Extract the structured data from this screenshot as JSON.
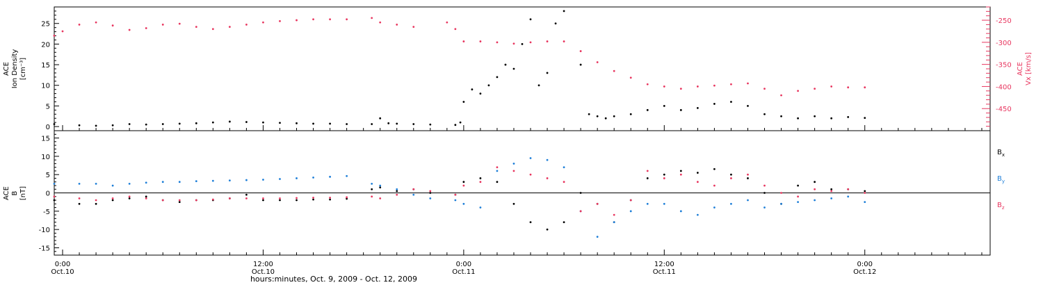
{
  "figure": {
    "xlabel": "hours:minutes, Oct. 9, 2009 - Oct. 12, 2009",
    "colors": {
      "black": "#000000",
      "pink": "#e8365f",
      "blue": "#1e7fd8"
    },
    "x_ticks": [
      {
        "t": 0,
        "time": "0:00",
        "date": "Oct.10"
      },
      {
        "t": 12,
        "time": "12:00",
        "date": "Oct.10"
      },
      {
        "t": 24,
        "time": "0:00",
        "date": "Oct.11"
      },
      {
        "t": 36,
        "time": "12:00",
        "date": "Oct.11"
      },
      {
        "t": 48,
        "time": "0:00",
        "date": "Oct.12"
      }
    ]
  },
  "chart_data": [
    {
      "type": "scatter",
      "panel": "top",
      "xlim": [
        -0.5,
        55.5
      ],
      "ylim": [
        -1,
        29
      ],
      "y2lim": [
        -500,
        -220
      ],
      "ylabel_left": [
        "ACE",
        "Ion Density",
        "[cm⁻³]"
      ],
      "ylabel_right": [
        "ACE",
        "Vx [km/s]"
      ],
      "left_ticks": [
        0,
        5,
        10,
        15,
        20,
        25
      ],
      "right_ticks": [
        -250,
        -300,
        -350,
        -400,
        -450
      ],
      "series": [
        {
          "color": "black",
          "axis": "left",
          "points": [
            [
              -0.5,
              0.6
            ],
            [
              1,
              0.3
            ],
            [
              2,
              0.2
            ],
            [
              3,
              0.3
            ],
            [
              4,
              0.6
            ],
            [
              5,
              0.5
            ],
            [
              6,
              0.6
            ],
            [
              7,
              0.7
            ],
            [
              8,
              0.8
            ],
            [
              9,
              1.0
            ],
            [
              10,
              1.2
            ],
            [
              11,
              1.1
            ],
            [
              12,
              1.0
            ],
            [
              13,
              0.9
            ],
            [
              14,
              0.8
            ],
            [
              15,
              0.7
            ],
            [
              16,
              0.7
            ],
            [
              17,
              0.6
            ],
            [
              18.5,
              0.6
            ],
            [
              19,
              2.0
            ],
            [
              19.5,
              0.8
            ],
            [
              20,
              0.7
            ],
            [
              21,
              0.6
            ],
            [
              22,
              0.5
            ],
            [
              23.5,
              0.4
            ],
            [
              23.8,
              1.0
            ],
            [
              24,
              6.0
            ],
            [
              24.5,
              9.0
            ],
            [
              25,
              8.0
            ],
            [
              25.5,
              10.0
            ],
            [
              26,
              12.0
            ],
            [
              26.5,
              15.0
            ],
            [
              27,
              14.0
            ],
            [
              27.5,
              20.0
            ],
            [
              28,
              26.0
            ],
            [
              28.5,
              10.0
            ],
            [
              29,
              13.0
            ],
            [
              29.5,
              25.0
            ],
            [
              30,
              28.0
            ],
            [
              31,
              15.0
            ],
            [
              31.5,
              3.0
            ],
            [
              32,
              2.5
            ],
            [
              32.5,
              2.0
            ],
            [
              33,
              2.5
            ],
            [
              34,
              3.0
            ],
            [
              35,
              4.0
            ],
            [
              36,
              5.0
            ],
            [
              37,
              4.0
            ],
            [
              38,
              4.5
            ],
            [
              39,
              5.5
            ],
            [
              40,
              6.0
            ],
            [
              41,
              5.0
            ],
            [
              42,
              3.0
            ],
            [
              43,
              2.5
            ],
            [
              44,
              2.0
            ],
            [
              45,
              2.5
            ],
            [
              46,
              2.0
            ],
            [
              47,
              2.3
            ],
            [
              48,
              2.1
            ]
          ]
        },
        {
          "color": "pink",
          "axis": "right",
          "points": [
            [
              -0.5,
              -285
            ],
            [
              0,
              -275
            ],
            [
              1,
              -260
            ],
            [
              2,
              -255
            ],
            [
              3,
              -262
            ],
            [
              4,
              -272
            ],
            [
              5,
              -268
            ],
            [
              6,
              -260
            ],
            [
              7,
              -258
            ],
            [
              8,
              -265
            ],
            [
              9,
              -270
            ],
            [
              10,
              -265
            ],
            [
              11,
              -260
            ],
            [
              12,
              -255
            ],
            [
              13,
              -252
            ],
            [
              14,
              -250
            ],
            [
              15,
              -248
            ],
            [
              16,
              -248
            ],
            [
              17,
              -248
            ],
            [
              18.5,
              -245
            ],
            [
              19,
              -255
            ],
            [
              20,
              -260
            ],
            [
              21,
              -265
            ],
            [
              23,
              -255
            ],
            [
              23.5,
              -270
            ],
            [
              24,
              -298
            ],
            [
              25,
              -298
            ],
            [
              26,
              -300
            ],
            [
              27,
              -303
            ],
            [
              28,
              -300
            ],
            [
              29,
              -298
            ],
            [
              30,
              -298
            ],
            [
              31,
              -320
            ],
            [
              32,
              -345
            ],
            [
              33,
              -365
            ],
            [
              34,
              -380
            ],
            [
              35,
              -395
            ],
            [
              36,
              -400
            ],
            [
              37,
              -405
            ],
            [
              38,
              -400
            ],
            [
              39,
              -398
            ],
            [
              40,
              -395
            ],
            [
              41,
              -393
            ],
            [
              42,
              -405
            ],
            [
              43,
              -420
            ],
            [
              44,
              -410
            ],
            [
              45,
              -405
            ],
            [
              46,
              -400
            ],
            [
              47,
              -402
            ],
            [
              48,
              -402
            ]
          ]
        }
      ]
    },
    {
      "type": "scatter",
      "panel": "bottom",
      "xlim": [
        -0.5,
        55.5
      ],
      "ylim": [
        -17,
        17
      ],
      "ylabel_left": [
        "ACE",
        "B",
        "[nT]"
      ],
      "left_ticks": [
        15,
        10,
        5,
        0,
        -5,
        -10,
        -15
      ],
      "legend": [
        "Bx",
        "By",
        "Bz"
      ],
      "series": [
        {
          "name": "Bx",
          "color": "black",
          "points": [
            [
              -0.5,
              -2.0
            ],
            [
              1,
              -3.0
            ],
            [
              2,
              -3.0
            ],
            [
              3,
              -2.0
            ],
            [
              4,
              -1.5
            ],
            [
              5,
              -1.0
            ],
            [
              6,
              -2.0
            ],
            [
              7,
              -2.5
            ],
            [
              8,
              -2.0
            ],
            [
              9,
              -2.0
            ],
            [
              10,
              -1.5
            ],
            [
              11,
              -0.5
            ],
            [
              12,
              -2.0
            ],
            [
              13,
              -2.0
            ],
            [
              14,
              -2.0
            ],
            [
              15,
              -1.8
            ],
            [
              16,
              -1.8
            ],
            [
              17,
              -1.6
            ],
            [
              18.5,
              1.0
            ],
            [
              19,
              1.5
            ],
            [
              20,
              0.5
            ],
            [
              21,
              1.0
            ],
            [
              22,
              0.0
            ],
            [
              23.5,
              -0.5
            ],
            [
              24,
              3.0
            ],
            [
              25,
              4.0
            ],
            [
              26,
              3.0
            ],
            [
              27,
              -3.0
            ],
            [
              28,
              -8.0
            ],
            [
              29,
              -10.0
            ],
            [
              30,
              -8.0
            ],
            [
              31,
              0.0
            ],
            [
              32,
              -3.0
            ],
            [
              33,
              -8.0
            ],
            [
              34,
              -2.0
            ],
            [
              35,
              4.0
            ],
            [
              36,
              5.0
            ],
            [
              37,
              6.0
            ],
            [
              38,
              5.5
            ],
            [
              39,
              6.5
            ],
            [
              40,
              5.0
            ],
            [
              41,
              4.0
            ],
            [
              42,
              0.0
            ],
            [
              43,
              -3.0
            ],
            [
              44,
              2.0
            ],
            [
              45,
              3.0
            ],
            [
              46,
              1.0
            ],
            [
              47,
              1.0
            ],
            [
              48,
              0.5
            ]
          ]
        },
        {
          "name": "By",
          "color": "blue",
          "points": [
            [
              -0.5,
              2.5
            ],
            [
              1,
              2.5
            ],
            [
              2,
              2.5
            ],
            [
              3,
              2.0
            ],
            [
              4,
              2.5
            ],
            [
              5,
              2.8
            ],
            [
              6,
              3.0
            ],
            [
              7,
              3.0
            ],
            [
              8,
              3.2
            ],
            [
              9,
              3.3
            ],
            [
              10,
              3.4
            ],
            [
              11,
              3.5
            ],
            [
              12,
              3.6
            ],
            [
              13,
              3.8
            ],
            [
              14,
              4.0
            ],
            [
              15,
              4.2
            ],
            [
              16,
              4.4
            ],
            [
              17,
              4.6
            ],
            [
              18.5,
              2.5
            ],
            [
              19,
              2.0
            ],
            [
              20,
              1.0
            ],
            [
              21,
              -0.5
            ],
            [
              22,
              -1.5
            ],
            [
              23.5,
              -2.0
            ],
            [
              24,
              -3.0
            ],
            [
              25,
              -4.0
            ],
            [
              26,
              6.0
            ],
            [
              27,
              8.0
            ],
            [
              28,
              9.5
            ],
            [
              29,
              9.0
            ],
            [
              30,
              7.0
            ],
            [
              31,
              -5.0
            ],
            [
              32,
              -12.0
            ],
            [
              33,
              -8.0
            ],
            [
              34,
              -5.0
            ],
            [
              35,
              -3.0
            ],
            [
              36,
              -3.0
            ],
            [
              37,
              -5.0
            ],
            [
              38,
              -6.0
            ],
            [
              39,
              -4.0
            ],
            [
              40,
              -3.0
            ],
            [
              41,
              -2.0
            ],
            [
              42,
              -4.0
            ],
            [
              43,
              -3.0
            ],
            [
              44,
              -2.5
            ],
            [
              45,
              -2.0
            ],
            [
              46,
              -1.5
            ],
            [
              47,
              -1.0
            ],
            [
              48,
              -2.5
            ]
          ]
        },
        {
          "name": "Bz",
          "color": "pink",
          "points": [
            [
              -0.5,
              -1.0
            ],
            [
              1,
              -1.5
            ],
            [
              2,
              -2.0
            ],
            [
              3,
              -1.5
            ],
            [
              4,
              -1.0
            ],
            [
              5,
              -1.5
            ],
            [
              6,
              -2.0
            ],
            [
              7,
              -2.0
            ],
            [
              8,
              -2.0
            ],
            [
              9,
              -1.8
            ],
            [
              10,
              -1.5
            ],
            [
              11,
              -1.5
            ],
            [
              12,
              -1.5
            ],
            [
              13,
              -1.5
            ],
            [
              14,
              -1.4
            ],
            [
              15,
              -1.3
            ],
            [
              16,
              -1.3
            ],
            [
              17,
              -1.2
            ],
            [
              18.5,
              -1.0
            ],
            [
              19,
              -1.5
            ],
            [
              20,
              -0.5
            ],
            [
              21,
              1.0
            ],
            [
              22,
              0.5
            ],
            [
              23.5,
              -0.5
            ],
            [
              24,
              2.0
            ],
            [
              25,
              3.0
            ],
            [
              26,
              7.0
            ],
            [
              27,
              6.0
            ],
            [
              28,
              5.0
            ],
            [
              29,
              4.0
            ],
            [
              30,
              3.0
            ],
            [
              31,
              -5.0
            ],
            [
              32,
              -3.0
            ],
            [
              33,
              -6.0
            ],
            [
              34,
              -2.0
            ],
            [
              35,
              6.0
            ],
            [
              36,
              4.0
            ],
            [
              37,
              5.0
            ],
            [
              38,
              3.0
            ],
            [
              39,
              2.0
            ],
            [
              40,
              4.0
            ],
            [
              41,
              5.0
            ],
            [
              42,
              2.0
            ],
            [
              43,
              0.0
            ],
            [
              44,
              -1.0
            ],
            [
              45,
              1.0
            ],
            [
              46,
              0.5
            ],
            [
              47,
              1.0
            ],
            [
              48,
              0.0
            ]
          ]
        }
      ]
    }
  ]
}
